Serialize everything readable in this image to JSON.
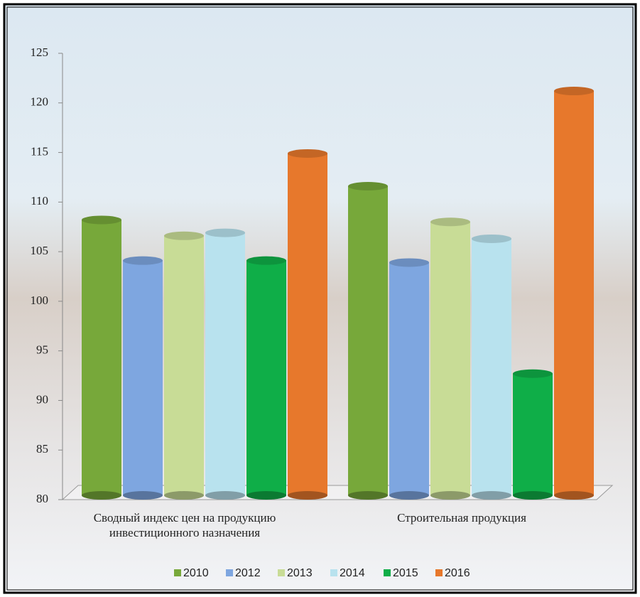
{
  "chart_data": {
    "type": "bar3d",
    "categories": [
      "Сводный индекс цен на продукцию инвестиционного назначения",
      "Строительная продукция"
    ],
    "series": [
      {
        "name": "2010",
        "color": "#77a83a",
        "values": [
          108.2,
          111.6
        ]
      },
      {
        "name": "2012",
        "color": "#7ea6e0",
        "values": [
          104.1,
          103.9
        ]
      },
      {
        "name": "2013",
        "color": "#c8dc96",
        "values": [
          106.6,
          108.0
        ]
      },
      {
        "name": "2014",
        "color": "#b8e2ee",
        "values": [
          106.9,
          106.3
        ]
      },
      {
        "name": "2015",
        "color": "#0fae48",
        "values": [
          104.1,
          92.7
        ]
      },
      {
        "name": "2016",
        "color": "#e7782c",
        "values": [
          114.9,
          121.2
        ]
      }
    ],
    "ylim": [
      80,
      125
    ],
    "yticks": [
      80,
      85,
      90,
      95,
      100,
      105,
      110,
      115,
      120,
      125
    ],
    "legend": "bottom"
  }
}
